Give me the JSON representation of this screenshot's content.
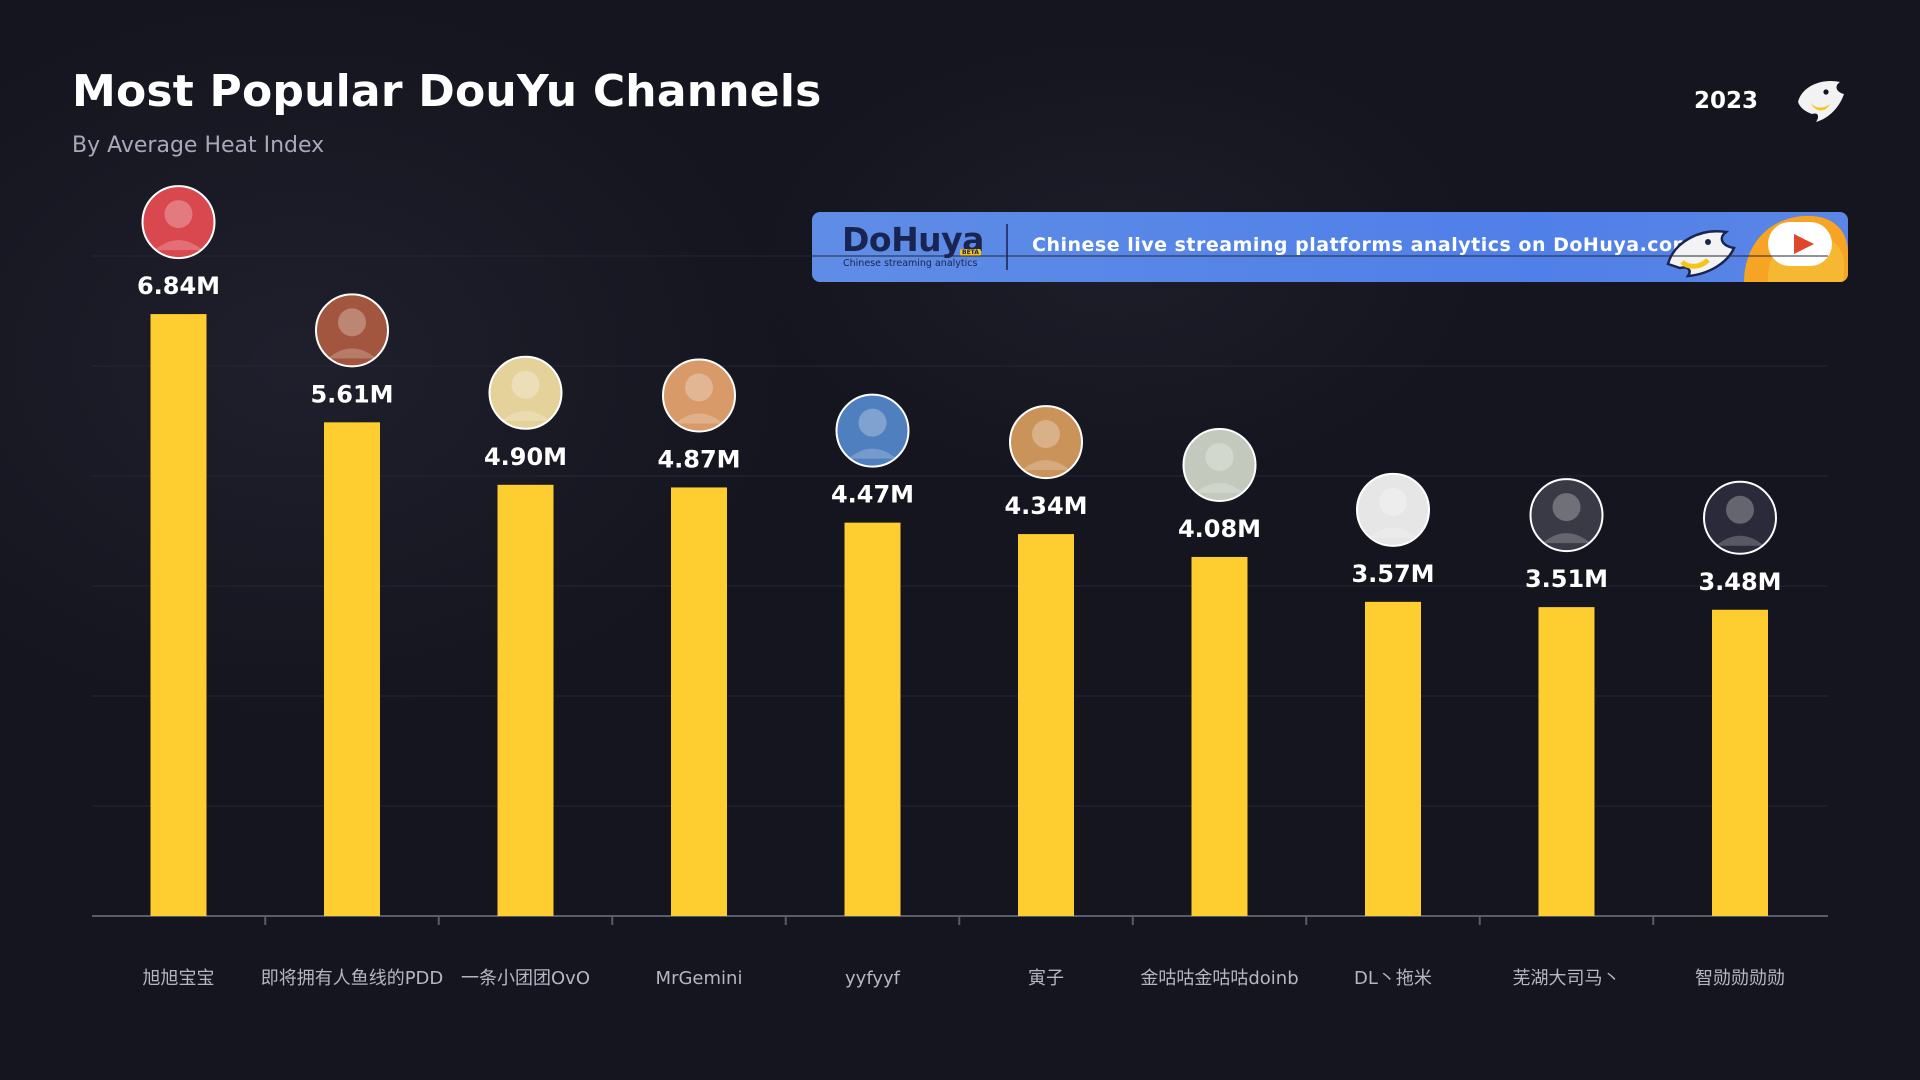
{
  "header": {
    "title": "Most Popular DouYu Channels",
    "subtitle": "By Average Heat Index",
    "year": "2023"
  },
  "banner": {
    "brand": "DoHuya",
    "badge": "BETA",
    "tagline": "Chinese streaming analytics",
    "text": "Chinese live streaming platforms analytics on DoHuya.com"
  },
  "colors": {
    "background": "#15151f",
    "bar": "#fecd2f",
    "banner": "#5b86e5"
  },
  "chart_data": {
    "type": "bar",
    "title": "Most Popular DouYu Channels",
    "subtitle": "By Average Heat Index",
    "unit": "M",
    "ylim": [
      0,
      7.5
    ],
    "grid": true,
    "legend": "none",
    "categories": [
      "旭旭宝宝",
      "即将拥有人鱼线的PDD",
      "一条小团团OvO",
      "MrGemini",
      "yyfyyf",
      "寅子",
      "金咕咕金咕咕doinb",
      "DL丶拖米",
      "芜湖大司马丶",
      "智勋勋勋勋"
    ],
    "values": [
      6.84,
      5.61,
      4.9,
      4.87,
      4.47,
      4.34,
      4.08,
      3.57,
      3.51,
      3.48
    ],
    "value_labels": [
      "6.84M",
      "5.61M",
      "4.90M",
      "4.87M",
      "4.47M",
      "4.34M",
      "4.08M",
      "3.57M",
      "3.51M",
      "3.48M"
    ],
    "avatar_colors": [
      "#d9474f",
      "#a2563f",
      "#e5d29a",
      "#d79a68",
      "#4f7fbf",
      "#c9935a",
      "#c3cabd",
      "#e6e6e6",
      "#3a3a46",
      "#2a2a3a"
    ]
  }
}
